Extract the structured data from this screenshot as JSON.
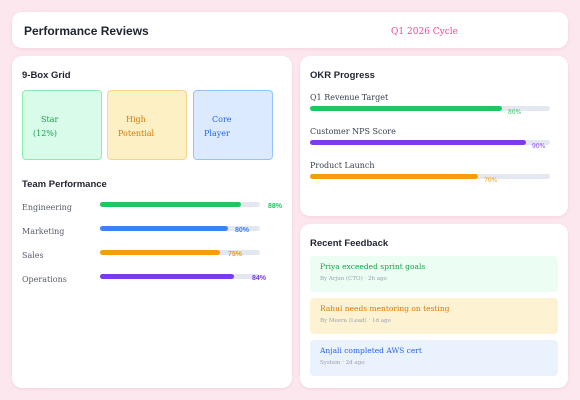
{
  "header": {
    "title": "Performance Reviews",
    "cycle": "Q1 2026 Cycle"
  },
  "nine_box": {
    "title": "9-Box Grid",
    "boxes": [
      {
        "lines": [
          "Star",
          "(12%)"
        ],
        "color": "#16a34a"
      },
      {
        "lines": [
          "High",
          "Potential"
        ],
        "color": "#d97706"
      },
      {
        "lines": [
          "Core",
          "Player"
        ],
        "color": "#2563eb"
      }
    ]
  },
  "team_performance": {
    "title": "Team Performance",
    "teams": [
      {
        "name": "Engineering",
        "percent": 88,
        "label": "88%",
        "color": "#22c55e"
      },
      {
        "name": "Marketing",
        "percent": 80,
        "label": "80%",
        "color": "#3b82f6"
      },
      {
        "name": "Sales",
        "percent": 75,
        "label": "75%",
        "color": "#f59e0b"
      },
      {
        "name": "Operations",
        "percent": 84,
        "label": "84%",
        "color": "#7c3aed"
      }
    ]
  },
  "okr": {
    "title": "OKR Progress",
    "items": [
      {
        "name": "Q1 Revenue Target",
        "percent": 80,
        "label": "80%",
        "color": "#22c55e"
      },
      {
        "name": "Customer NPS Score",
        "percent": 90,
        "label": "90%",
        "color": "#7c3aed"
      },
      {
        "name": "Product Launch",
        "percent": 70,
        "label": "70%",
        "color": "#f59e0b"
      }
    ]
  },
  "feedback": {
    "title": "Recent Feedback",
    "items": [
      {
        "text": "Priya exceeded sprint goals",
        "meta": "By Arjun (CTO) · 2h ago",
        "color": "#16a34a",
        "bg": "#ecfdf3"
      },
      {
        "text": "Rahul needs mentoring on testing",
        "meta": "By Meera (Lead) · 1d ago",
        "color": "#d97706",
        "bg": "#fdf3d3"
      },
      {
        "text": "Anjali completed AWS cert",
        "meta": "System · 2d ago",
        "color": "#2563eb",
        "bg": "#eaf2fe"
      }
    ]
  }
}
